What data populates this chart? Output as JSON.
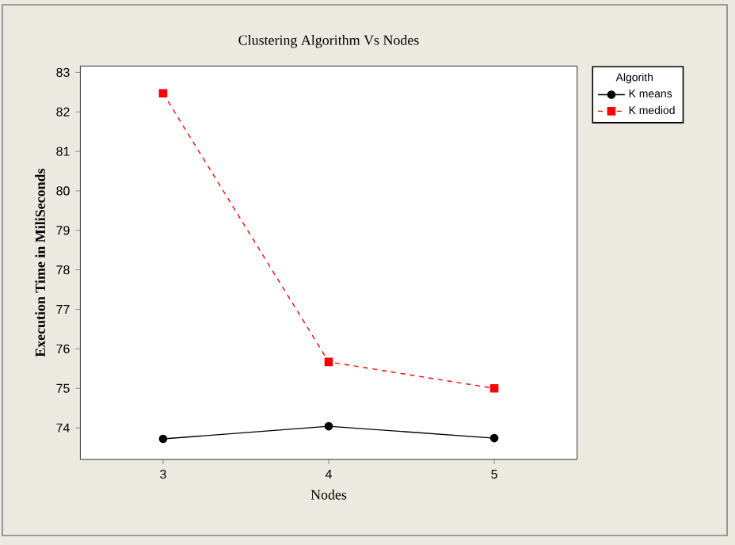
{
  "chart_data": {
    "type": "line",
    "title": "Clustering Algorithm Vs Nodes",
    "xlabel": "Nodes",
    "ylabel": "Execution Time in MiliSeconds",
    "legend_title": "Algorith",
    "x": [
      3,
      4,
      5
    ],
    "xlim": [
      2.5,
      5.5
    ],
    "xticks": [
      3,
      4,
      5
    ],
    "ylim": [
      73.2,
      83.16
    ],
    "yticks": [
      74,
      75,
      76,
      77,
      78,
      79,
      80,
      81,
      82,
      83
    ],
    "legend": "top right",
    "grid": false,
    "series": [
      {
        "name": "K means",
        "color": "#000000",
        "values": [
          73.72,
          74.04,
          73.74
        ],
        "marker": "circle",
        "line_style": "solid"
      },
      {
        "name": "K mediod",
        "color": "#ff0000",
        "values": [
          82.47,
          75.67,
          75.0
        ],
        "marker": "square",
        "line_style": "dashed"
      }
    ]
  }
}
